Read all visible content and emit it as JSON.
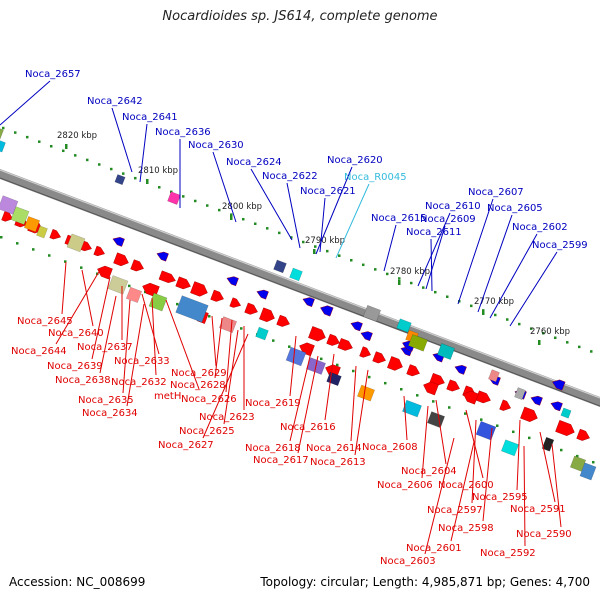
{
  "title": "Nocardioides sp. JS614, complete genome",
  "accession": "Accession: NC_008699",
  "summary": "Topology: circular; Length: 4,985,871 bp; Genes: 4,700",
  "colors": {
    "upper_label": "#0000c0",
    "rna_label": "#33bbdd",
    "lower_label": "#e00000",
    "forward_arrow": "#ff0000",
    "reverse_arrow": "#0000ee",
    "tick": "#228b22"
  },
  "scale_labels": [
    "2820 kbp",
    "2810 kbp",
    "2800 kbp",
    "2790 kbp",
    "2780 kbp",
    "2770 kbp",
    "2760 kbp"
  ],
  "upper_labels": [
    "Noca_2657",
    "Noca_2642",
    "Noca_2641",
    "Noca_2636",
    "Noca_2630",
    "Noca_2624",
    "Noca_2622",
    "Noca_2620",
    "Noca_R0045",
    "Noca_2621",
    "Noca_2615",
    "Noca_2610",
    "Noca_2609",
    "Noca_2611",
    "Noca_2607",
    "Noca_2605",
    "Noca_2602",
    "Noca_2599"
  ],
  "lower_labels": [
    "Noca_2645",
    "Noca_2640",
    "Noca_2644",
    "Noca_2639",
    "Noca_2637",
    "Noca_2633",
    "Noca_2638",
    "Noca_2632",
    "Noca_2635",
    "metH",
    "Noca_2634",
    "Noca_2629",
    "Noca_2628",
    "Noca_2626",
    "Noca_2623",
    "Noca_2625",
    "Noca_2627",
    "Noca_2619",
    "Noca_2618",
    "Noca_2617",
    "Noca_2616",
    "Noca_2614",
    "Noca_2613",
    "Noca_2608",
    "Noca_2604",
    "Noca_2606",
    "Noca_2600",
    "Noca_2597",
    "Noca_2595",
    "Noca_2598",
    "Noca_2591",
    "Noca_2590",
    "Noca_2601",
    "Noca_2592",
    "Noca_2603"
  ]
}
